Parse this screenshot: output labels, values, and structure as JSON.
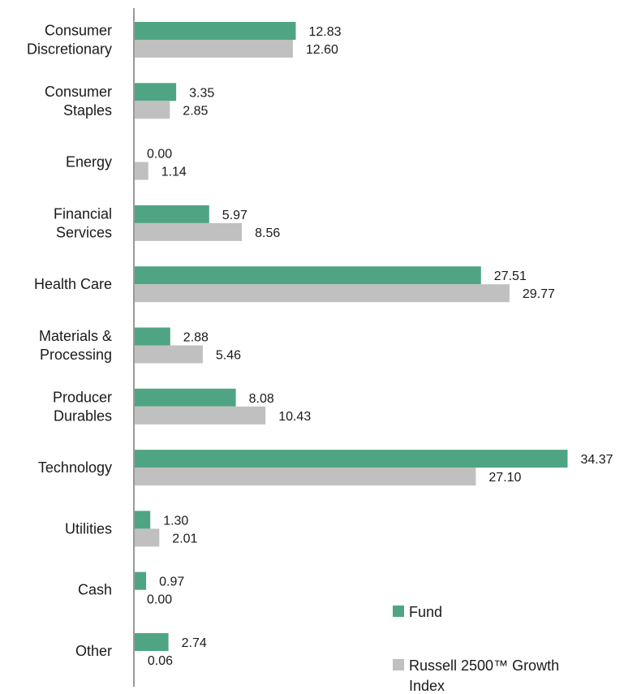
{
  "chart_data": {
    "type": "bar",
    "orientation": "horizontal",
    "categories": [
      "Consumer Discretionary",
      "Consumer Staples",
      "Energy",
      "Financial Services",
      "Health Care",
      "Materials & Processing",
      "Producer Durables",
      "Technology",
      "Utilities",
      "Cash",
      "Other"
    ],
    "category_lines": [
      [
        "Consumer",
        "Discretionary"
      ],
      [
        "Consumer",
        "Staples"
      ],
      [
        "Energy"
      ],
      [
        "Financial",
        "Services"
      ],
      [
        "Health Care"
      ],
      [
        "Materials &",
        "Processing"
      ],
      [
        "Producer",
        "Durables"
      ],
      [
        "Technology"
      ],
      [
        "Utilities"
      ],
      [
        "Cash"
      ],
      [
        "Other"
      ]
    ],
    "series": [
      {
        "name": "Fund",
        "color": "#4fa583",
        "values": [
          12.83,
          3.35,
          0.0,
          5.97,
          27.51,
          2.88,
          8.08,
          34.37,
          1.3,
          0.97,
          2.74
        ],
        "labels": [
          "12.83",
          "3.35",
          "0.00",
          "5.97",
          "27.51",
          "2.88",
          "8.08",
          "34.37",
          "1.30",
          "0.97",
          "2.74"
        ]
      },
      {
        "name": "Russell 2500™ Growth Index",
        "color": "#c0c0c0",
        "values": [
          12.6,
          2.85,
          1.14,
          8.56,
          29.77,
          5.46,
          10.43,
          27.1,
          2.01,
          0.0,
          0.06
        ],
        "labels": [
          "12.60",
          "2.85",
          "1.14",
          "8.56",
          "29.77",
          "5.46",
          "10.43",
          "27.10",
          "2.01",
          "0.00",
          "0.06"
        ]
      }
    ],
    "legend": {
      "placement": "bottom-right",
      "entries": [
        {
          "lines": [
            "Fund"
          ],
          "color": "#4fa583"
        },
        {
          "lines": [
            "Russell 2500™ Growth",
            "Index"
          ],
          "color": "#c0c0c0"
        }
      ]
    },
    "title": "",
    "xlabel": "",
    "ylabel": "",
    "xlim": [
      0,
      34.37
    ],
    "grid": false,
    "axis_color": "#999999"
  }
}
